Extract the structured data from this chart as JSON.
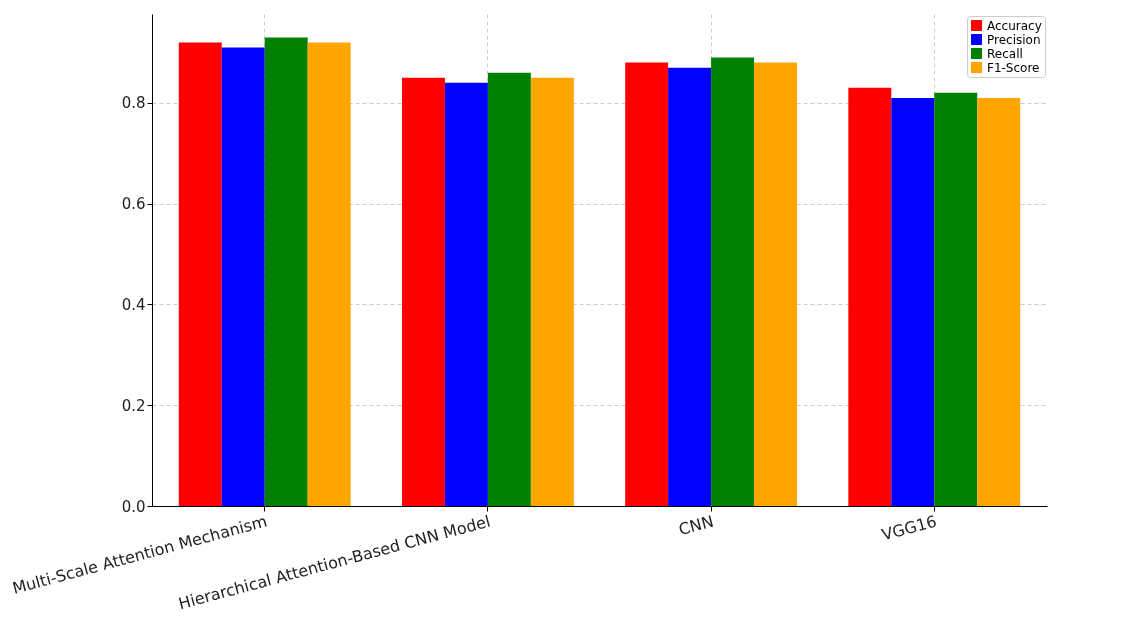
{
  "chart_data": {
    "type": "bar",
    "categories": [
      "Multi-Scale Attention Mechanism",
      "Hierarchical Attention-Based CNN Model",
      "CNN",
      "VGG16"
    ],
    "series": [
      {
        "name": "Accuracy",
        "color": "#ff0000",
        "values": [
          0.92,
          0.85,
          0.88,
          0.83
        ]
      },
      {
        "name": "Precision",
        "color": "#0000ff",
        "values": [
          0.91,
          0.84,
          0.87,
          0.81
        ]
      },
      {
        "name": "Recall",
        "color": "#008000",
        "values": [
          0.93,
          0.86,
          0.89,
          0.82
        ]
      },
      {
        "name": "F1-Score",
        "color": "#ffa500",
        "values": [
          0.92,
          0.85,
          0.88,
          0.81
        ]
      }
    ],
    "ylim": [
      0,
      0.9765
    ],
    "yticks": [
      {
        "value": 0,
        "label": "0.0"
      },
      {
        "value": 0.2,
        "label": "0.2"
      },
      {
        "value": 0.4,
        "label": "0.4"
      },
      {
        "value": 0.6,
        "label": "0.6"
      },
      {
        "value": 0.8,
        "label": "0.8"
      }
    ],
    "grid": true,
    "legend": "top right"
  }
}
